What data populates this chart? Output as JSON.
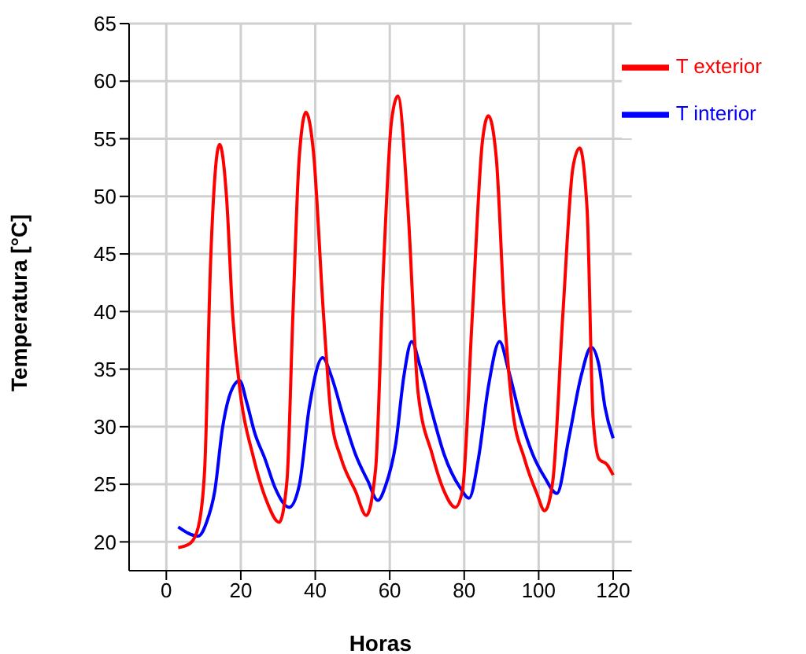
{
  "chart_data": {
    "type": "line",
    "xlabel": "Horas",
    "ylabel": "Temperatura [°C]",
    "xlim": [
      -10,
      125
    ],
    "xticks": [
      0,
      20,
      40,
      60,
      80,
      100,
      120
    ],
    "ylim": [
      17.5,
      65
    ],
    "yticks": [
      20,
      25,
      30,
      35,
      40,
      45,
      50,
      55,
      60,
      65
    ],
    "grid": true,
    "legend": "top right",
    "marker": "none",
    "line_style": "solid",
    "series": [
      {
        "name": "T interior",
        "color": "#0000ff",
        "x": [
          3.2,
          8.6,
          10.8,
          13,
          15.1,
          17.3,
          19.7,
          21.6,
          23.8,
          26.5,
          29.2,
          33,
          35.7,
          38.4,
          42,
          44.3,
          47.6,
          50.8,
          54.1,
          56.8,
          58.9,
          61.6,
          63.8,
          65.9,
          68.1,
          71.4,
          74.6,
          78.9,
          81.3,
          83.8,
          86.5,
          89.5,
          91.9,
          95.1,
          98.4,
          101.6,
          104.9,
          108.1,
          111.4,
          114.1,
          116.2,
          117.8,
          120
        ],
        "values": [
          21.3,
          20.5,
          21.7,
          24.4,
          29.9,
          33,
          34,
          32.1,
          29.4,
          27.2,
          24.7,
          23,
          24.9,
          31.7,
          36,
          34.4,
          30.8,
          27.6,
          25.3,
          23.6,
          24.9,
          28.5,
          34.4,
          37.4,
          35.3,
          31.2,
          27.6,
          24.7,
          23.8,
          27.2,
          33.5,
          37.4,
          34.9,
          30.8,
          27.6,
          25.6,
          24.2,
          29,
          34.4,
          36.9,
          35.3,
          31.7,
          29
        ]
      },
      {
        "name": "T exterior",
        "color": "#ff0000",
        "x": [
          3.2,
          6.5,
          8.6,
          10.3,
          11.9,
          14.3,
          16.2,
          17.8,
          20,
          23.2,
          27,
          30.3,
          32.4,
          34,
          35.7,
          37.5,
          39.5,
          42.2,
          44.3,
          47,
          50.8,
          53.7,
          56.2,
          58.4,
          60.5,
          62.2,
          64.9,
          67.6,
          71.4,
          74.6,
          77.6,
          79.5,
          82.2,
          84.9,
          86.5,
          88.6,
          90.8,
          92.9,
          96.2,
          99.5,
          101.6,
          103.8,
          106.5,
          109.2,
          111,
          113,
          114.6,
          116.2,
          118.4,
          120
        ],
        "values": [
          19.5,
          19.9,
          21.3,
          26.3,
          44.4,
          54.5,
          49.8,
          39.8,
          32.6,
          27.6,
          23.5,
          21.7,
          25.3,
          39.8,
          53.4,
          57.3,
          53.9,
          39.8,
          30.8,
          27.2,
          24.4,
          22.3,
          26.3,
          44.4,
          56.6,
          58.7,
          48.9,
          33,
          27.6,
          24.4,
          23,
          24.4,
          39.8,
          54.8,
          57,
          53.4,
          39.8,
          31.7,
          27.2,
          24.2,
          22.7,
          25.3,
          39.8,
          52.5,
          54.2,
          48.9,
          30.8,
          27.2,
          26.7,
          25.8
        ]
      }
    ]
  }
}
